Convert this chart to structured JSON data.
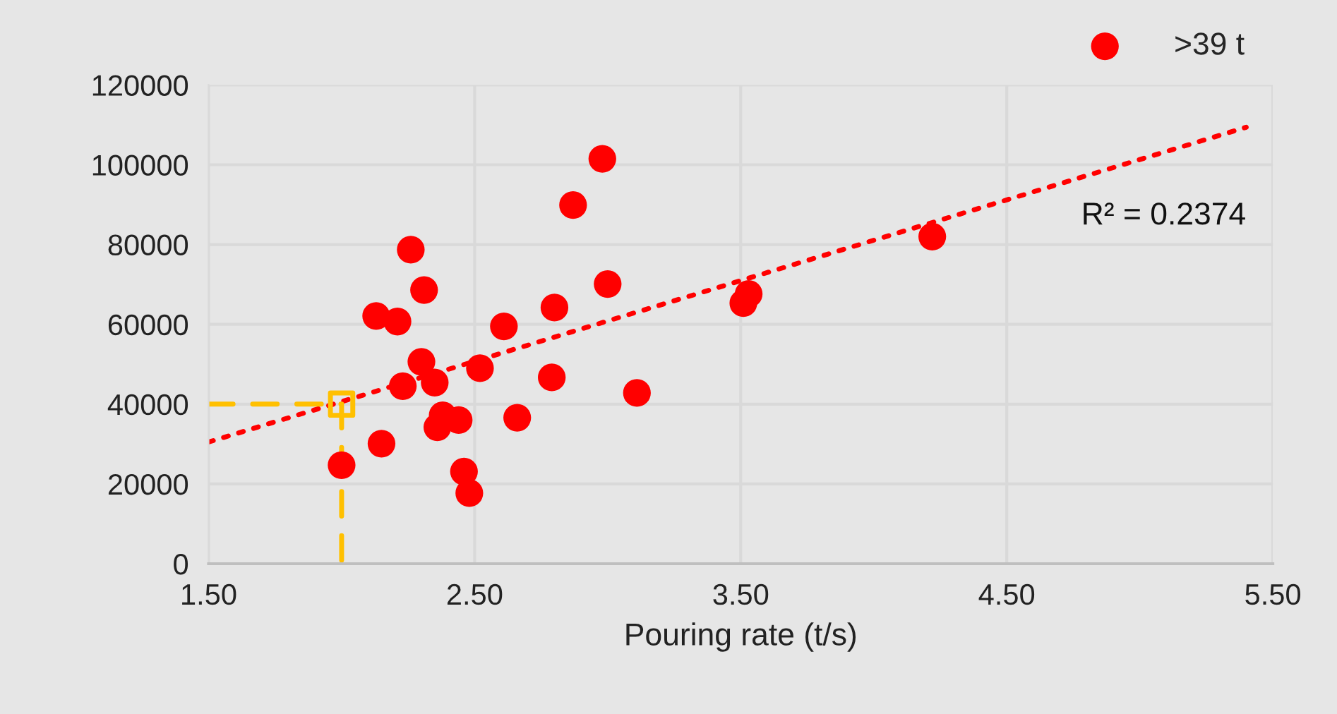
{
  "chart_data": {
    "type": "scatter",
    "xlabel": "Pouring rate (t/s)",
    "xlim": [
      1.5,
      5.5
    ],
    "xticks": [
      {
        "value": 1.5,
        "label": "1.50"
      },
      {
        "value": 2.5,
        "label": "2.50"
      },
      {
        "value": 3.5,
        "label": "3.50"
      },
      {
        "value": 4.5,
        "label": "4.50"
      },
      {
        "value": 5.5,
        "label": "5.50"
      }
    ],
    "ylim": [
      0,
      120000
    ],
    "yticks": [
      0,
      20000,
      40000,
      60000,
      80000,
      100000,
      120000
    ],
    "grid": true,
    "legend": "top right",
    "series": [
      {
        "name": ">39 t",
        "color": "#ff0000",
        "marker": "circle",
        "x": [
          2.98,
          2.87,
          2.26,
          2.31,
          3.0,
          2.13,
          2.21,
          2.8,
          2.61,
          2.3,
          2.23,
          2.35,
          2.52,
          2.79,
          3.11,
          2.38,
          2.36,
          2.44,
          2.66,
          2.15,
          2.0,
          2.46,
          2.48,
          4.22,
          3.53,
          3.51
        ],
        "values": [
          101500,
          89900,
          78700,
          68600,
          70100,
          62100,
          60700,
          64200,
          59500,
          50600,
          44500,
          45400,
          49000,
          46700,
          42800,
          37200,
          34200,
          36000,
          36600,
          30100,
          24700,
          23100,
          17700,
          82000,
          67600,
          65300
        ]
      },
      {
        "type": "line",
        "color": "#ff0000",
        "line_style": "dotted",
        "marker": "none",
        "x": [
          1.5,
          5.4
        ],
        "values": [
          30500,
          109400
        ]
      },
      {
        "type": "line",
        "color": "#ffc000",
        "line_style": "dashed",
        "marker": "none",
        "x": [
          1.5,
          2.0,
          2.0
        ],
        "values": [
          40000,
          40000,
          0
        ]
      },
      {
        "type": "scatter",
        "color": "#ffc000",
        "marker": "square",
        "x": [
          2.0
        ],
        "values": [
          40000
        ]
      }
    ],
    "annotations": [
      "R² = 0.2374"
    ]
  }
}
